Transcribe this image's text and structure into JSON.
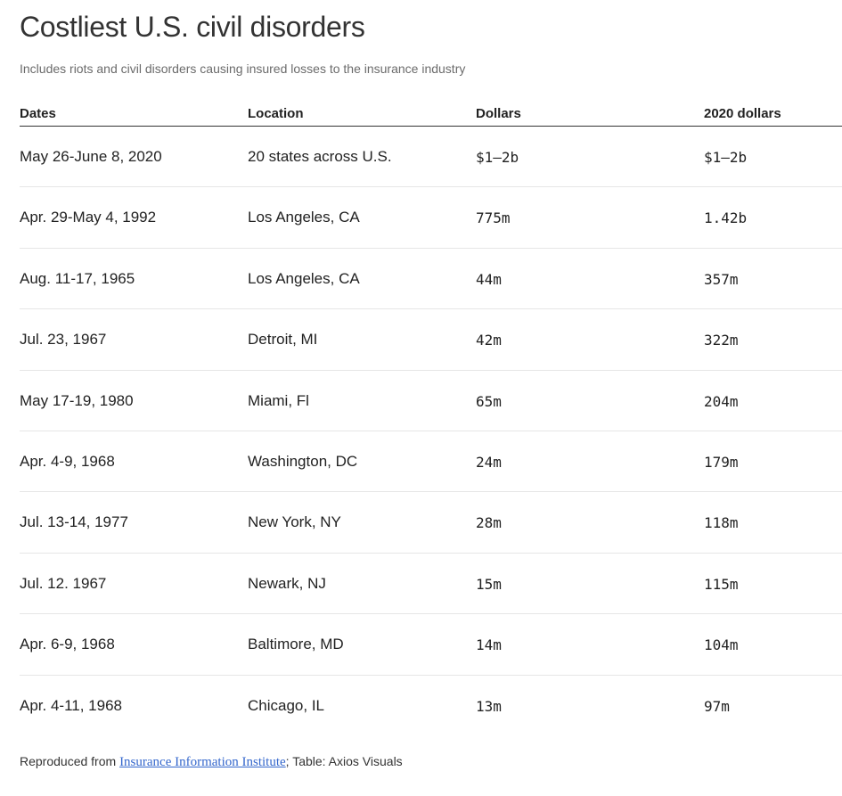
{
  "header": {
    "title": "Costliest U.S. civil disorders",
    "subtitle": "Includes riots and civil disorders causing insured losses to the insurance industry"
  },
  "chart_data": {
    "type": "table",
    "columns": [
      "Dates",
      "Location",
      "Dollars",
      "2020 dollars"
    ],
    "rows": [
      [
        "May 26-June 8, 2020",
        "20 states across U.S.",
        "$1–2b",
        "$1–2b"
      ],
      [
        "Apr. 29-May 4, 1992",
        "Los Angeles, CA",
        "775m",
        "1.42b"
      ],
      [
        "Aug. 11-17, 1965",
        "Los Angeles, CA",
        "44m",
        "357m"
      ],
      [
        "Jul. 23, 1967",
        "Detroit, MI",
        "42m",
        "322m"
      ],
      [
        "May 17-19, 1980",
        "Miami, Fl",
        "65m",
        "204m"
      ],
      [
        "Apr. 4-9, 1968",
        "Washington, DC",
        "24m",
        "179m"
      ],
      [
        "Jul. 13-14, 1977",
        "New York, NY",
        "28m",
        "118m"
      ],
      [
        "Jul. 12. 1967",
        "Newark, NJ",
        "15m",
        "115m"
      ],
      [
        "Apr. 6-9, 1968",
        "Baltimore, MD",
        "14m",
        "104m"
      ],
      [
        "Apr. 4-11, 1968",
        "Chicago, IL",
        "13m",
        "97m"
      ]
    ]
  },
  "footer": {
    "prefix": "Reproduced from ",
    "link_text": "Insurance Information Institute",
    "suffix": "; Table: Axios Visuals"
  },
  "colors": {
    "link": "#3366cc",
    "header_rule": "#333333",
    "row_rule": "#e6e6e6"
  }
}
